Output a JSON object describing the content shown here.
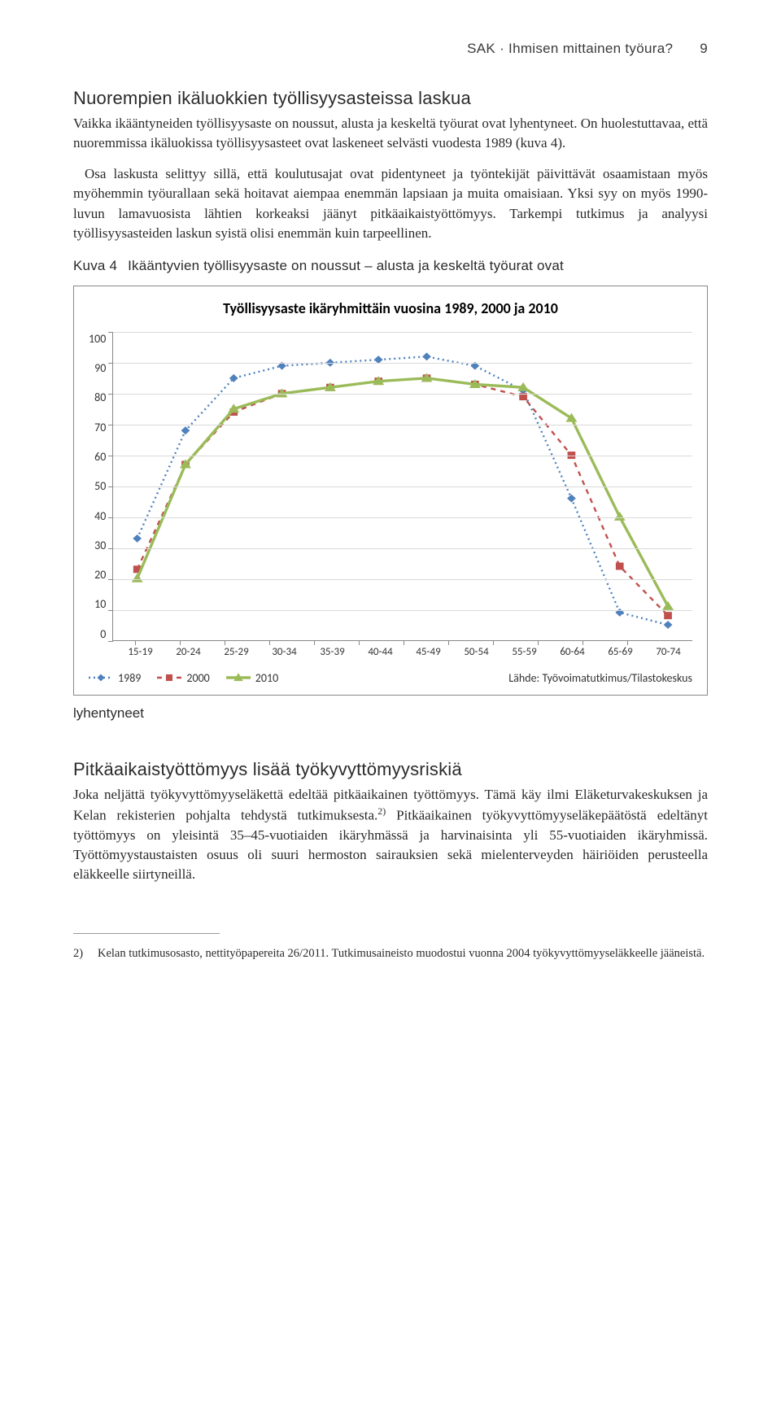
{
  "header": {
    "title": "SAK · Ihmisen mittainen työura?",
    "page_number": "9"
  },
  "section1": {
    "heading": "Nuorempien ikäluokkien työllisyysasteissa laskua",
    "p1": "Vaikka ikääntyneiden työllisyysaste on noussut, alusta ja keskeltä työurat ovat lyhentyneet. On huolestuttavaa, että nuoremmissa ikäluokissa työllisyysasteet ovat laskeneet selvästi vuodesta 1989 (kuva 4).",
    "p2": "Osa laskusta selittyy sillä, että koulutusajat ovat pidentyneet ja työntekijät päivittävät osaamistaan myös myöhemmin työurallaan sekä hoitavat aiempaa enemmän lapsiaan ja muita omaisiaan. Yksi syy on myös 1990-luvun lamavuosista lähtien korkeaksi jäänyt pitkäaikaistyöttömyys. Tarkempi tutkimus ja analyysi työllisyysasteiden laskun syistä olisi enemmän kuin tarpeellinen."
  },
  "figure": {
    "label": "Kuva 4",
    "caption": "Ikääntyvien työllisyysaste on noussut – alusta ja keskeltä työurat ovat",
    "caption_after": "lyhentyneet"
  },
  "chart": {
    "type": "line",
    "title": "Työllisyysaste ikäryhmittäin vuosina 1989, 2000 ja 2010",
    "categories": [
      "15-19",
      "20-24",
      "25-29",
      "30-34",
      "35-39",
      "40-44",
      "45-49",
      "50-54",
      "55-59",
      "60-64",
      "65-69",
      "70-74"
    ],
    "series": [
      {
        "name": "1989",
        "values": [
          33,
          68,
          85,
          89,
          90,
          91,
          92,
          89,
          81,
          46,
          9,
          5
        ],
        "color": "#4f81bd",
        "dash": "2 4",
        "width": 2.4,
        "marker": "diamond",
        "marker_size": 10
      },
      {
        "name": "2000",
        "values": [
          23,
          57,
          74,
          80,
          82,
          84,
          85,
          83,
          79,
          60,
          24,
          8
        ],
        "color": "#c0504d",
        "dash": "6 6",
        "width": 2.4,
        "marker": "square",
        "marker_size": 9
      },
      {
        "name": "2010",
        "values": [
          20,
          57,
          75,
          80,
          82,
          84,
          85,
          83,
          82,
          72,
          40,
          11
        ],
        "color": "#9bbb59",
        "dash": "none",
        "width": 3.4,
        "marker": "triangle",
        "marker_size": 11
      }
    ],
    "ylim": [
      0,
      100
    ],
    "ytick_step": 10,
    "grid_color": "#d9d9d9",
    "axis_color": "#888888",
    "background_color": "#ffffff",
    "title_fontsize": 18,
    "label_fontsize": 14,
    "source_label": "Lähde: Työvoimatutkimus/Tilastokeskus"
  },
  "section2": {
    "heading": "Pitkäaikaistyöttömyys lisää työkyvyttömyysriskiä",
    "p1_a": "Joka neljättä työkyvyttömyyseläkettä edeltää pitkäaikainen työttömyys. Tämä käy ilmi Eläketurvakeskuksen ja Kelan rekisterien pohjalta tehdystä tutkimuksesta.",
    "p1_sup": "2)",
    "p1_b": " Pitkäaikainen työkyvyttömyyseläkepäätöstä edeltänyt työttömyys on yleisintä 35–45-vuotiaiden ikäryhmässä ja harvinaisinta yli 55-vuotiaiden ikäryhmissä. Työttömyystaustaisten osuus oli suuri hermoston sairauksien sekä mielenterveyden häiriöiden perusteella eläkkeelle siirtyneillä."
  },
  "footnote": {
    "num": "2)",
    "text": "Kelan tutkimusosasto, nettityöpapereita 26/2011. Tutkimusaineisto muodostui vuonna 2004 työkyvyttömyyseläkkeelle jääneistä."
  }
}
